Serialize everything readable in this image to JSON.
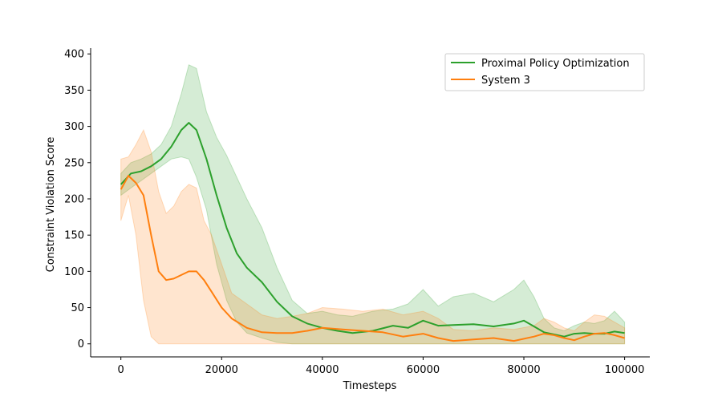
{
  "chart_data": {
    "type": "line",
    "title": "",
    "xlabel": "Timesteps",
    "ylabel": "Constraint Violation Score",
    "xlim": [
      -6000,
      105000
    ],
    "ylim": [
      -18,
      408
    ],
    "xticks": [
      0,
      20000,
      40000,
      60000,
      80000,
      100000
    ],
    "yticks": [
      0,
      50,
      100,
      150,
      200,
      250,
      300,
      350,
      400
    ],
    "grid": false,
    "legend_position": "top-right",
    "series": [
      {
        "name": "Proximal Policy Optimization",
        "color": "#2ca02c",
        "x": [
          0,
          2000,
          4000,
          6000,
          8000,
          10000,
          12000,
          13500,
          15000,
          17000,
          19000,
          21000,
          23000,
          25000,
          28000,
          31000,
          34000,
          37000,
          40000,
          43000,
          46000,
          50000,
          54000,
          57000,
          60000,
          63000,
          66000,
          70000,
          74000,
          78000,
          80000,
          82000,
          84000,
          86000,
          88000,
          90000,
          92000,
          94000,
          96000,
          98000,
          100000
        ],
        "mean": [
          220,
          235,
          238,
          245,
          255,
          272,
          295,
          305,
          295,
          255,
          205,
          160,
          125,
          105,
          85,
          58,
          38,
          28,
          22,
          18,
          15,
          18,
          25,
          22,
          32,
          25,
          26,
          27,
          24,
          28,
          32,
          24,
          16,
          13,
          10,
          14,
          15,
          14,
          14,
          17,
          15
        ],
        "lower": [
          205,
          215,
          225,
          235,
          245,
          255,
          258,
          255,
          230,
          185,
          110,
          60,
          30,
          15,
          8,
          2,
          0,
          0,
          0,
          0,
          0,
          0,
          0,
          0,
          0,
          0,
          0,
          0,
          0,
          0,
          0,
          0,
          0,
          0,
          0,
          0,
          0,
          0,
          0,
          0,
          0
        ],
        "upper": [
          235,
          250,
          255,
          262,
          275,
          300,
          345,
          385,
          380,
          320,
          285,
          260,
          230,
          200,
          160,
          105,
          60,
          42,
          45,
          40,
          38,
          45,
          48,
          55,
          75,
          52,
          65,
          70,
          58,
          75,
          88,
          65,
          35,
          22,
          18,
          25,
          30,
          28,
          32,
          45,
          30
        ]
      },
      {
        "name": "System 3",
        "color": "#ff7f0e",
        "x": [
          0,
          1500,
          3000,
          4500,
          6000,
          7500,
          9000,
          10500,
          12000,
          13500,
          15000,
          16500,
          18000,
          20000,
          22000,
          25000,
          28000,
          31000,
          34000,
          37000,
          40000,
          44000,
          48000,
          52000,
          56000,
          60000,
          63000,
          66000,
          70000,
          74000,
          78000,
          82000,
          84000,
          86000,
          88000,
          90000,
          92000,
          94000,
          96000,
          98000,
          100000
        ],
        "mean": [
          213,
          232,
          222,
          205,
          150,
          100,
          88,
          90,
          95,
          100,
          100,
          88,
          72,
          50,
          35,
          22,
          16,
          15,
          15,
          18,
          22,
          20,
          18,
          16,
          10,
          14,
          8,
          4,
          6,
          8,
          4,
          10,
          14,
          12,
          8,
          5,
          10,
          14,
          15,
          12,
          8
        ],
        "lower": [
          170,
          205,
          150,
          60,
          10,
          0,
          0,
          0,
          0,
          0,
          0,
          0,
          0,
          0,
          0,
          0,
          0,
          0,
          0,
          0,
          0,
          0,
          0,
          0,
          0,
          0,
          0,
          0,
          0,
          0,
          0,
          0,
          0,
          0,
          0,
          0,
          0,
          0,
          0,
          0,
          0
        ],
        "upper": [
          255,
          258,
          275,
          295,
          265,
          210,
          180,
          190,
          210,
          220,
          215,
          170,
          150,
          110,
          70,
          55,
          40,
          35,
          38,
          42,
          50,
          48,
          45,
          48,
          40,
          45,
          35,
          20,
          18,
          22,
          20,
          25,
          35,
          30,
          22,
          18,
          30,
          40,
          38,
          30,
          22
        ]
      }
    ]
  }
}
